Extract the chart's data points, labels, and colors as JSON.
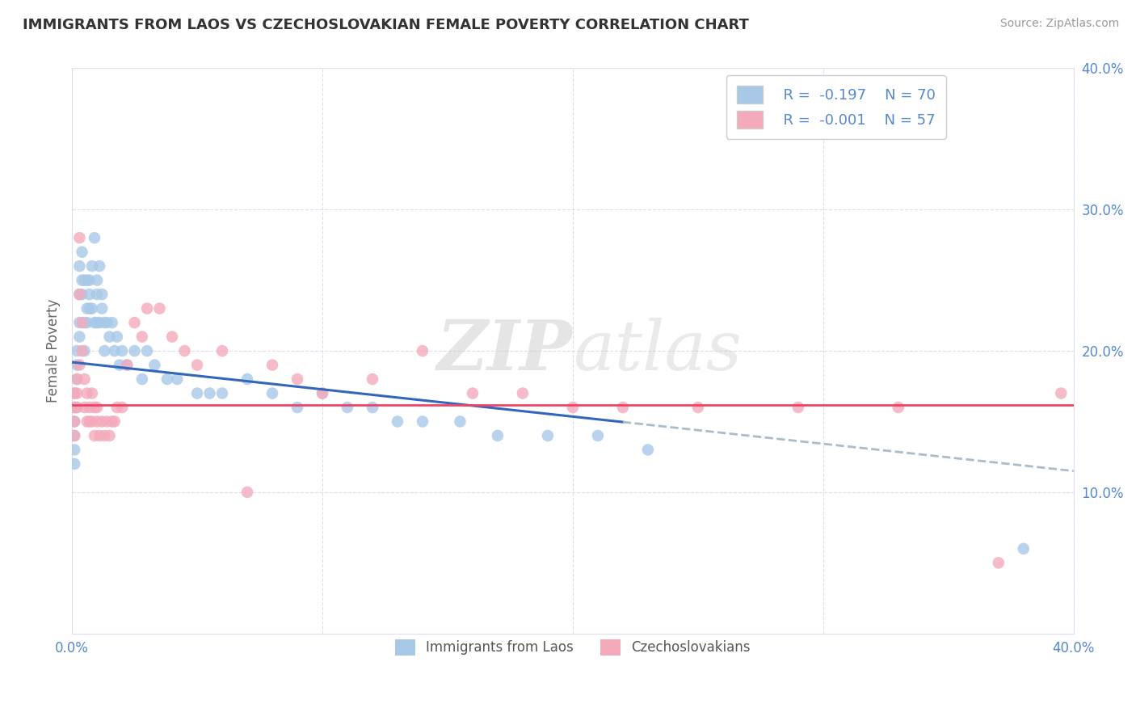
{
  "title": "IMMIGRANTS FROM LAOS VS CZECHOSLOVAKIAN FEMALE POVERTY CORRELATION CHART",
  "source": "Source: ZipAtlas.com",
  "ylabel": "Female Poverty",
  "xlim": [
    0,
    0.4
  ],
  "ylim": [
    0,
    0.4
  ],
  "blue_dot_color": "#A8C8E8",
  "pink_dot_color": "#F4AABB",
  "trend_blue_color": "#3366BB",
  "trend_pink_color": "#EE4466",
  "trend_dashed_color": "#AABBCC",
  "watermark_color": "#DDDDDD",
  "background_color": "#FFFFFF",
  "grid_color": "#DDDDEE",
  "tick_color": "#5588CC",
  "title_color": "#333333",
  "ylabel_color": "#666666",
  "source_color": "#999999",
  "blue_line_solid_end": 0.22,
  "blue_line_start_y": 0.192,
  "blue_line_end_y": 0.115,
  "pink_line_y": 0.162,
  "blue_scatter_x": [
    0.001,
    0.001,
    0.001,
    0.001,
    0.001,
    0.001,
    0.002,
    0.002,
    0.002,
    0.002,
    0.003,
    0.003,
    0.003,
    0.003,
    0.004,
    0.004,
    0.004,
    0.005,
    0.005,
    0.005,
    0.006,
    0.006,
    0.006,
    0.007,
    0.007,
    0.007,
    0.008,
    0.008,
    0.009,
    0.009,
    0.01,
    0.01,
    0.01,
    0.011,
    0.011,
    0.012,
    0.012,
    0.013,
    0.013,
    0.014,
    0.015,
    0.016,
    0.017,
    0.018,
    0.019,
    0.02,
    0.022,
    0.025,
    0.028,
    0.03,
    0.033,
    0.038,
    0.042,
    0.05,
    0.055,
    0.06,
    0.07,
    0.08,
    0.09,
    0.1,
    0.11,
    0.12,
    0.13,
    0.14,
    0.155,
    0.17,
    0.19,
    0.21,
    0.23,
    0.38
  ],
  "blue_scatter_y": [
    0.17,
    0.15,
    0.16,
    0.14,
    0.13,
    0.12,
    0.2,
    0.19,
    0.18,
    0.16,
    0.24,
    0.22,
    0.26,
    0.21,
    0.27,
    0.25,
    0.24,
    0.22,
    0.2,
    0.25,
    0.23,
    0.25,
    0.22,
    0.24,
    0.25,
    0.23,
    0.26,
    0.23,
    0.28,
    0.22,
    0.25,
    0.24,
    0.22,
    0.26,
    0.22,
    0.24,
    0.23,
    0.22,
    0.2,
    0.22,
    0.21,
    0.22,
    0.2,
    0.21,
    0.19,
    0.2,
    0.19,
    0.2,
    0.18,
    0.2,
    0.19,
    0.18,
    0.18,
    0.17,
    0.17,
    0.17,
    0.18,
    0.17,
    0.16,
    0.17,
    0.16,
    0.16,
    0.15,
    0.15,
    0.15,
    0.14,
    0.14,
    0.14,
    0.13,
    0.06
  ],
  "pink_scatter_x": [
    0.001,
    0.001,
    0.001,
    0.001,
    0.002,
    0.002,
    0.002,
    0.003,
    0.003,
    0.003,
    0.004,
    0.004,
    0.005,
    0.005,
    0.006,
    0.006,
    0.007,
    0.007,
    0.008,
    0.008,
    0.009,
    0.009,
    0.01,
    0.01,
    0.011,
    0.012,
    0.013,
    0.014,
    0.015,
    0.016,
    0.017,
    0.018,
    0.02,
    0.022,
    0.025,
    0.028,
    0.03,
    0.035,
    0.04,
    0.045,
    0.05,
    0.06,
    0.07,
    0.08,
    0.09,
    0.1,
    0.12,
    0.14,
    0.16,
    0.18,
    0.2,
    0.22,
    0.25,
    0.29,
    0.33,
    0.37,
    0.395
  ],
  "pink_scatter_y": [
    0.17,
    0.16,
    0.15,
    0.14,
    0.18,
    0.17,
    0.16,
    0.19,
    0.28,
    0.24,
    0.22,
    0.2,
    0.18,
    0.16,
    0.17,
    0.15,
    0.16,
    0.15,
    0.17,
    0.15,
    0.16,
    0.14,
    0.16,
    0.15,
    0.14,
    0.15,
    0.14,
    0.15,
    0.14,
    0.15,
    0.15,
    0.16,
    0.16,
    0.19,
    0.22,
    0.21,
    0.23,
    0.23,
    0.21,
    0.2,
    0.19,
    0.2,
    0.1,
    0.19,
    0.18,
    0.17,
    0.18,
    0.2,
    0.17,
    0.17,
    0.16,
    0.16,
    0.16,
    0.16,
    0.16,
    0.05,
    0.17
  ]
}
